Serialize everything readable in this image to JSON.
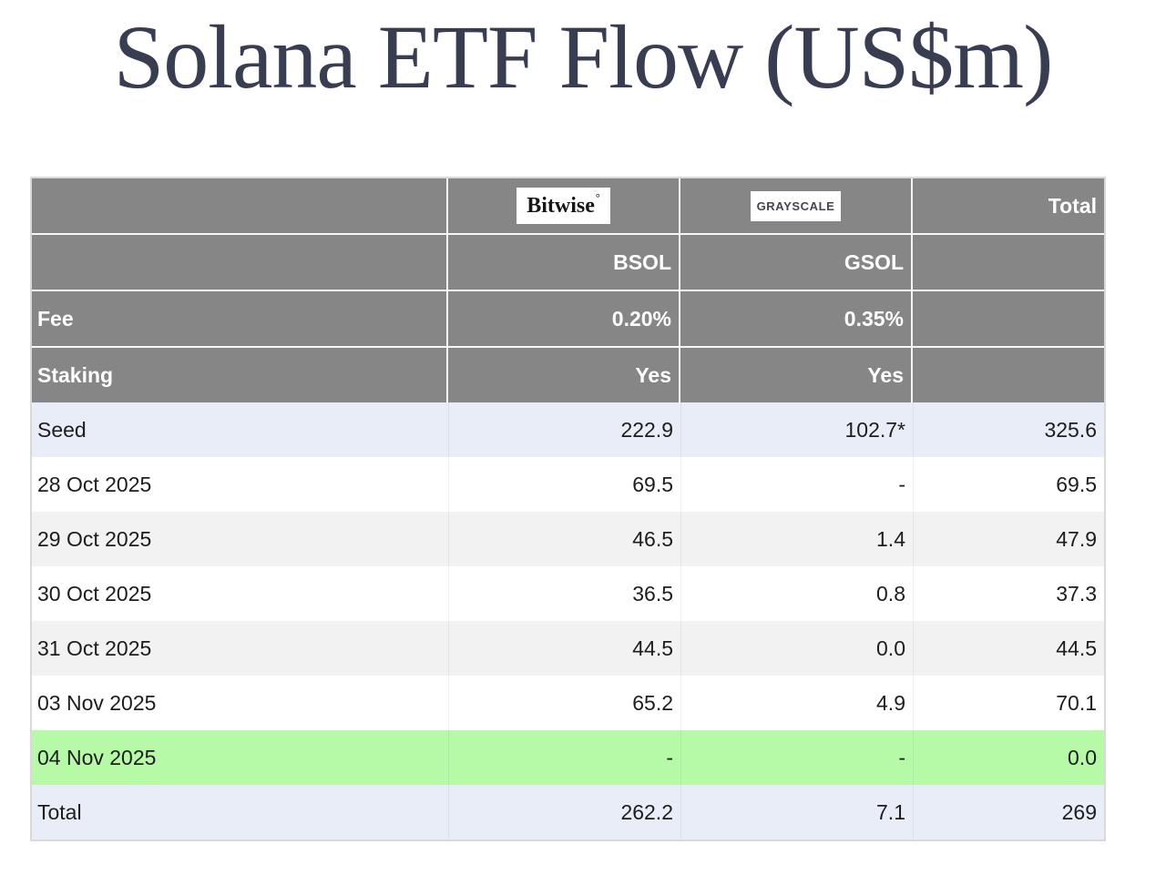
{
  "title": "Solana ETF Flow (US$m)",
  "colors": {
    "title_text": "#383d52",
    "header_bg": "#868686",
    "header_text": "#ffffff",
    "row_lavender": "#e9edf8",
    "row_alt_gray": "#f2f2f2",
    "row_highlight_green": "#b6faa8",
    "data_text": "#1d1d1d"
  },
  "logos": {
    "bitwise_text": "Bitwise",
    "bitwise_mark": "°",
    "grayscale_text": "GRAYSCALE"
  },
  "header": {
    "total_label": "Total",
    "ticker_bitwise": "BSOL",
    "ticker_grayscale": "GSOL",
    "fee_label": "Fee",
    "fee_bitwise": "0.20%",
    "fee_grayscale": "0.35%",
    "staking_label": "Staking",
    "staking_bitwise": "Yes",
    "staking_grayscale": "Yes"
  },
  "rows": [
    {
      "label": "Seed",
      "bsol": "222.9",
      "gsol": "102.7*",
      "total": "325.6"
    },
    {
      "label": "28 Oct 2025",
      "bsol": "69.5",
      "gsol": "-",
      "total": "69.5"
    },
    {
      "label": "29 Oct 2025",
      "bsol": "46.5",
      "gsol": "1.4",
      "total": "47.9"
    },
    {
      "label": "30 Oct 2025",
      "bsol": "36.5",
      "gsol": "0.8",
      "total": "37.3"
    },
    {
      "label": "31 Oct 2025",
      "bsol": "44.5",
      "gsol": "0.0",
      "total": "44.5"
    },
    {
      "label": "03 Nov 2025",
      "bsol": "65.2",
      "gsol": "4.9",
      "total": "70.1"
    },
    {
      "label": "04 Nov 2025",
      "bsol": "-",
      "gsol": "-",
      "total": "0.0"
    },
    {
      "label": "Total",
      "bsol": "262.2",
      "gsol": "7.1",
      "total": "269"
    }
  ],
  "chart_data": {
    "type": "table",
    "title": "Solana ETF Flow (US$m)",
    "units": "US$m",
    "issuers": [
      {
        "name": "Bitwise",
        "ticker": "BSOL",
        "fee": "0.20%",
        "staking": "Yes"
      },
      {
        "name": "Grayscale",
        "ticker": "GSOL",
        "fee": "0.35%",
        "staking": "Yes"
      }
    ],
    "columns": [
      "",
      "BSOL",
      "GSOL",
      "Total"
    ],
    "rows": [
      [
        "Seed",
        222.9,
        "102.7*",
        325.6
      ],
      [
        "28 Oct 2025",
        69.5,
        null,
        69.5
      ],
      [
        "29 Oct 2025",
        46.5,
        1.4,
        47.9
      ],
      [
        "30 Oct 2025",
        36.5,
        0.8,
        37.3
      ],
      [
        "31 Oct 2025",
        44.5,
        0.0,
        44.5
      ],
      [
        "03 Nov 2025",
        65.2,
        4.9,
        70.1
      ],
      [
        "04 Nov 2025",
        null,
        null,
        0.0
      ],
      [
        "Total",
        262.2,
        7.1,
        269
      ]
    ],
    "highlighted_row": "04 Nov 2025",
    "layout_hints": {
      "header_rows_background": "gray",
      "seed_and_total_rows_background": "lavender",
      "alternating_data_rows": [
        "white",
        "light-gray"
      ]
    }
  }
}
